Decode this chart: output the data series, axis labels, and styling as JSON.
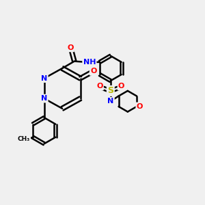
{
  "bg_color": "#f0f0f0",
  "bond_color": "#000000",
  "atom_colors": {
    "N": "#0000ff",
    "O": "#ff0000",
    "S": "#b8b800",
    "C": "#000000"
  },
  "font_size": 8,
  "line_width": 1.8
}
